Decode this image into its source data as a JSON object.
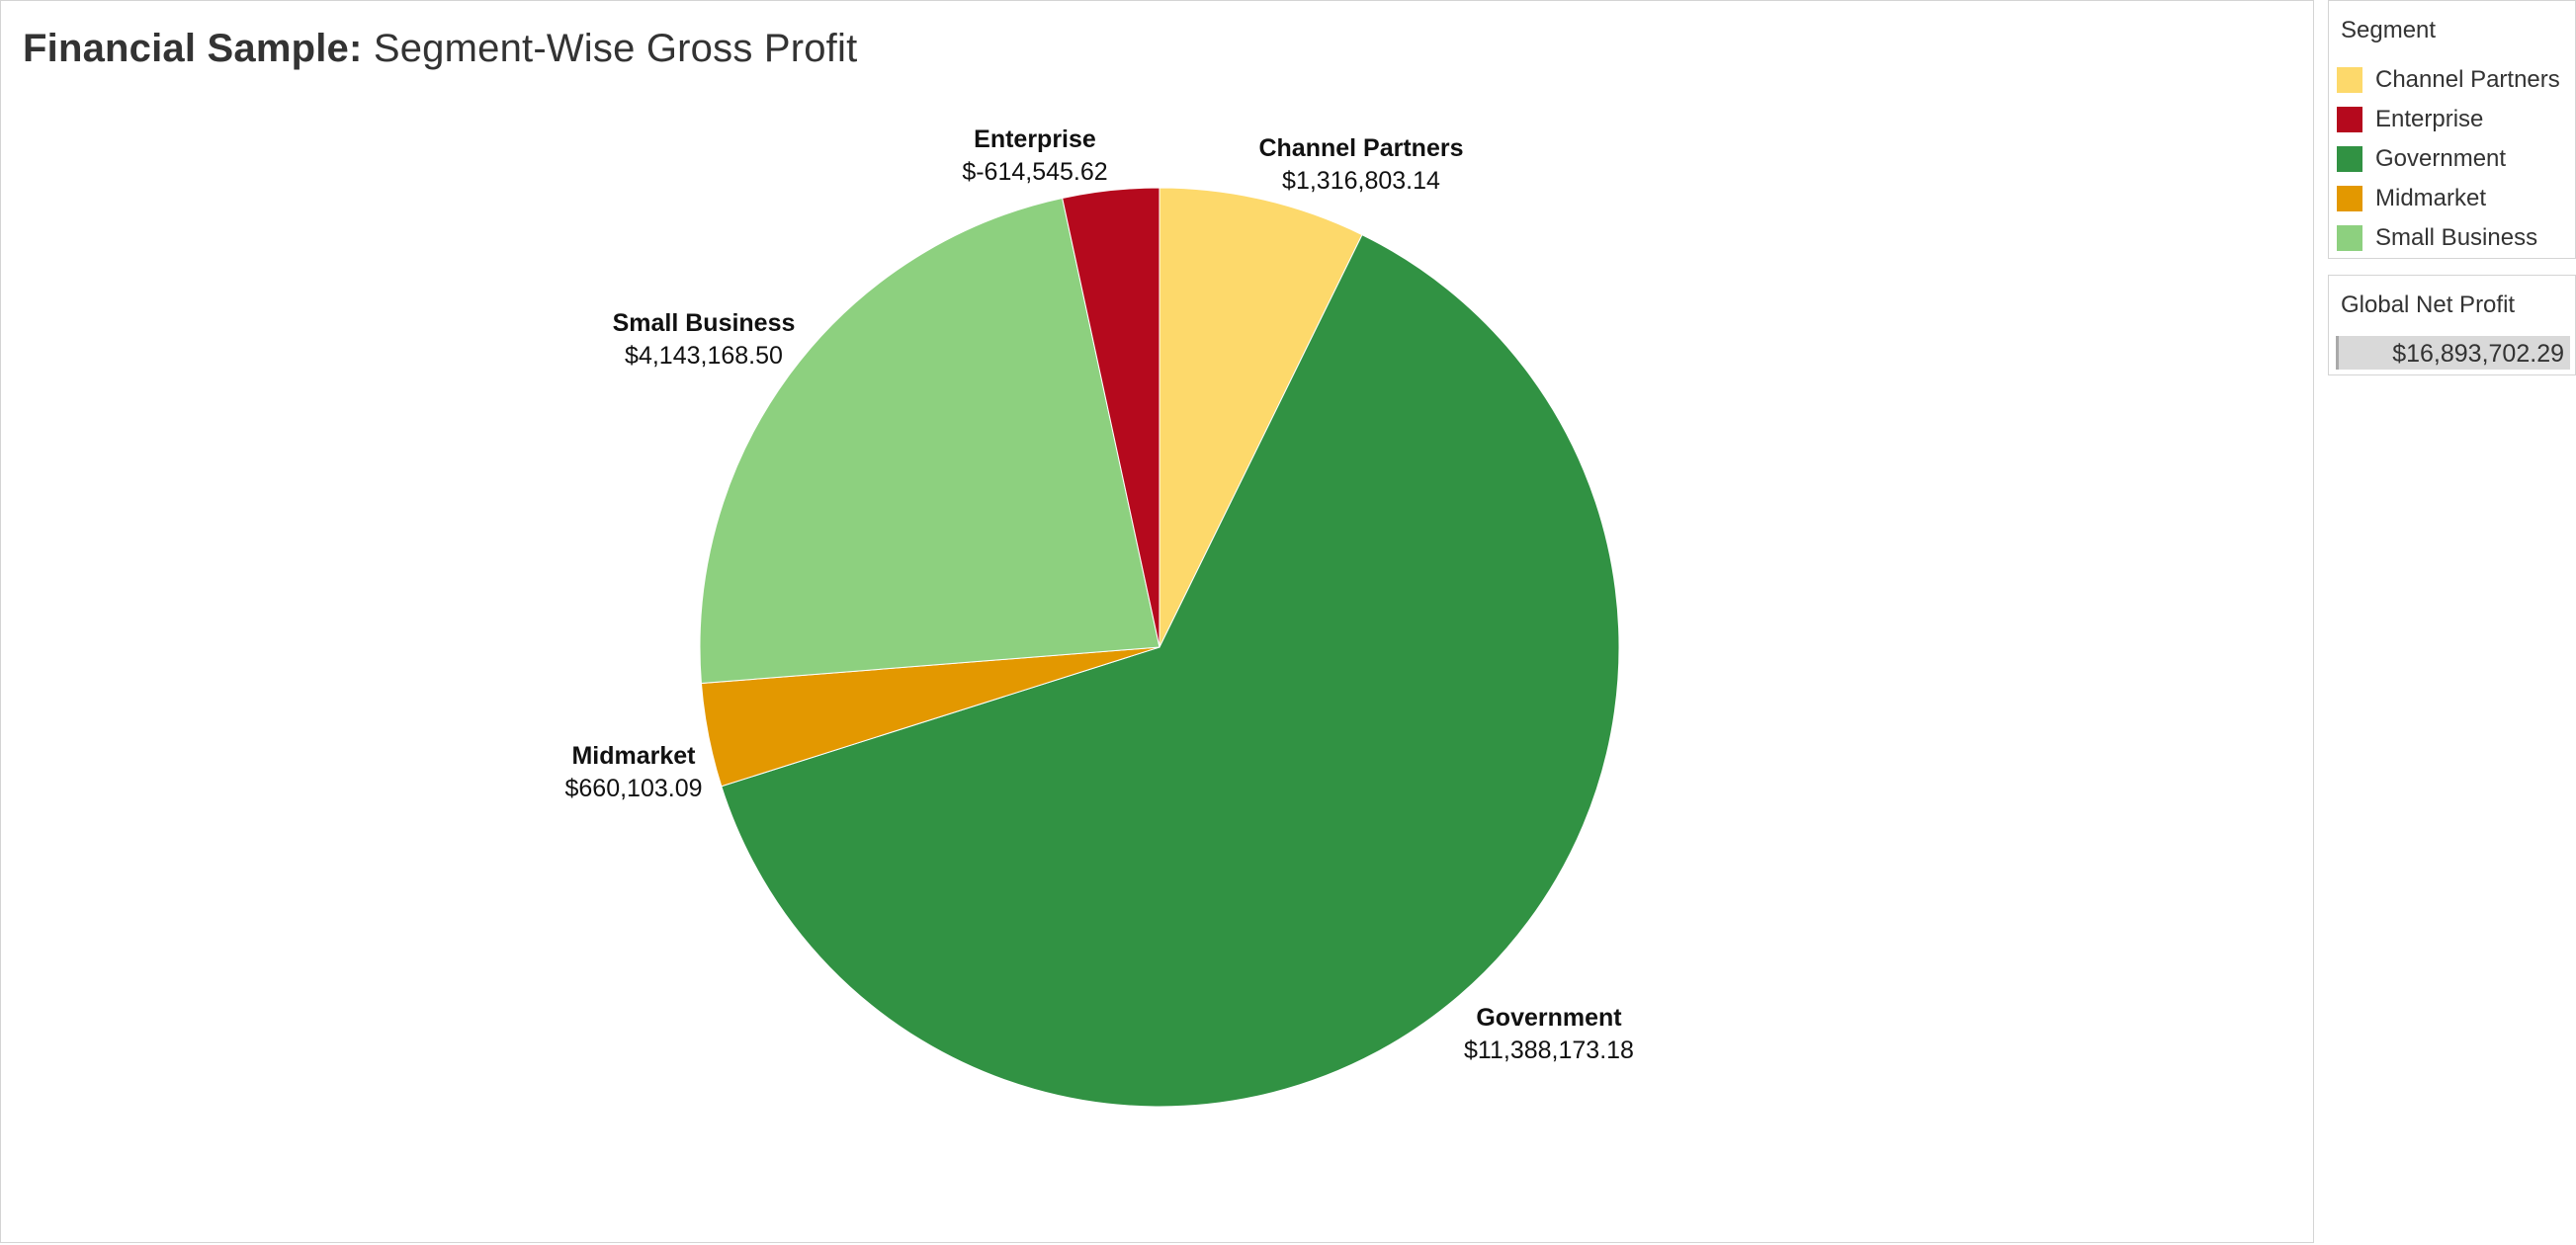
{
  "title": {
    "bold_part": "Financial Sample:",
    "rest": "Segment-Wise Gross Profit"
  },
  "legend": {
    "title": "Segment",
    "items": [
      {
        "label": "Channel Partners",
        "color": "#fdd96b"
      },
      {
        "label": "Enterprise",
        "color": "#b5091d"
      },
      {
        "label": "Government",
        "color": "#319243"
      },
      {
        "label": "Midmarket",
        "color": "#e39800"
      },
      {
        "label": "Small Business",
        "color": "#8dd07f"
      }
    ]
  },
  "net_profit": {
    "title": "Global Net Profit",
    "value": "$16,893,702.29"
  },
  "chart_data": {
    "type": "pie",
    "title": "Financial Sample: Segment-Wise Gross Profit",
    "slices": [
      {
        "name": "Channel Partners",
        "value": 1316803.14,
        "label": "$1,316,803.14",
        "color": "#fdd96b"
      },
      {
        "name": "Government",
        "value": 11388173.18,
        "label": "$11,388,173.18",
        "color": "#319243"
      },
      {
        "name": "Midmarket",
        "value": 660103.09,
        "label": "$660,103.09",
        "color": "#e39800"
      },
      {
        "name": "Small Business",
        "value": 4143168.5,
        "label": "$4,143,168.50",
        "color": "#8dd07f"
      },
      {
        "name": "Enterprise",
        "value": -614545.62,
        "label": "$-614,545.62",
        "color": "#b5091d"
      }
    ],
    "start_angle": "12 o'clock",
    "direction": "clockwise"
  }
}
